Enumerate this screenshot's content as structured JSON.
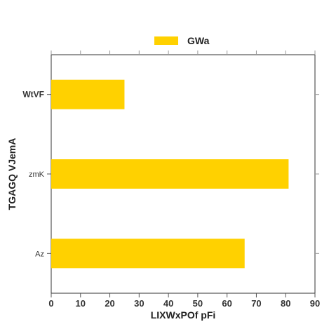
{
  "chart_data": {
    "type": "bar",
    "orientation": "horizontal",
    "categories": [
      "Az",
      "zmK",
      "WtVF"
    ],
    "series": [
      {
        "name": "GWa",
        "values": [
          66,
          81,
          25
        ],
        "color": "#FFD100"
      }
    ],
    "xlabel": "LIXWxPOf pFi",
    "ylabel": "TGAGQ VJemA",
    "xlim": [
      0,
      90
    ],
    "xticks": [
      0,
      10,
      20,
      30,
      40,
      50,
      60,
      70,
      80,
      90
    ],
    "grid": false,
    "legend_position": "top-center"
  }
}
